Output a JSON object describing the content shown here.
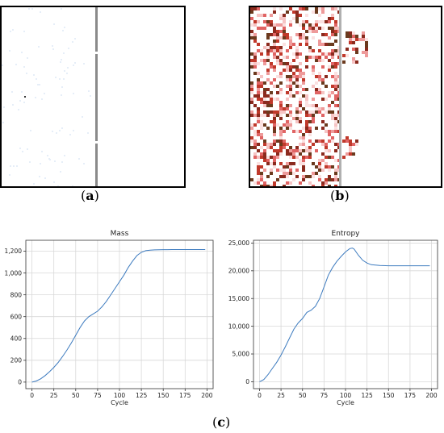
{
  "labels": {
    "a": "a",
    "b": "b",
    "c": "c"
  },
  "chart_data": [
    {
      "type": "line",
      "title": "Mass",
      "xlabel": "Cycle",
      "ylabel": "",
      "xlim": [
        -7,
        207
      ],
      "ylim": [
        -60,
        1300
      ],
      "xticks": [
        0,
        25,
        50,
        75,
        100,
        125,
        150,
        175,
        200
      ],
      "yticks": [
        0,
        200,
        400,
        600,
        800,
        1000,
        1200
      ],
      "ytick_labels": [
        "0",
        "200",
        "400",
        "600",
        "800",
        "1,000",
        "1,200"
      ],
      "grid": true,
      "color": "#3d7bbf",
      "series": [
        {
          "x": [
            0,
            5,
            10,
            15,
            20,
            25,
            30,
            35,
            40,
            45,
            50,
            55,
            60,
            65,
            70,
            75,
            80,
            85,
            90,
            95,
            100,
            105,
            110,
            115,
            120,
            125,
            130,
            135,
            140,
            145,
            150,
            155,
            160,
            170,
            180,
            190,
            198
          ],
          "y": [
            0,
            10,
            30,
            60,
            95,
            135,
            180,
            235,
            295,
            360,
            430,
            500,
            560,
            600,
            625,
            650,
            690,
            740,
            800,
            860,
            920,
            980,
            1050,
            1110,
            1160,
            1190,
            1205,
            1210,
            1212,
            1213,
            1214,
            1214,
            1215,
            1215,
            1215,
            1215,
            1215
          ]
        }
      ]
    },
    {
      "type": "line",
      "title": "Entropy",
      "xlabel": "Cycle",
      "ylabel": "",
      "xlim": [
        -7,
        207
      ],
      "ylim": [
        -1250,
        25500
      ],
      "xticks": [
        0,
        25,
        50,
        75,
        100,
        125,
        150,
        175,
        200
      ],
      "yticks": [
        0,
        5000,
        10000,
        15000,
        20000,
        25000
      ],
      "ytick_labels": [
        "0",
        "5,000",
        "10,000",
        "15,000",
        "20,000",
        "25,000"
      ],
      "grid": true,
      "color": "#3d7bbf",
      "series": [
        {
          "x": [
            0,
            5,
            10,
            15,
            20,
            25,
            30,
            35,
            40,
            45,
            50,
            55,
            60,
            65,
            70,
            75,
            80,
            85,
            90,
            95,
            100,
            105,
            108,
            110,
            115,
            120,
            125,
            130,
            140,
            150,
            160,
            170,
            180,
            190,
            198
          ],
          "y": [
            0,
            400,
            1300,
            2400,
            3500,
            4800,
            6300,
            7900,
            9500,
            10600,
            11400,
            12500,
            12900,
            13600,
            15000,
            17100,
            19200,
            20600,
            21700,
            22600,
            23400,
            24000,
            24100,
            23900,
            22800,
            21900,
            21400,
            21100,
            20950,
            20900,
            20900,
            20900,
            20900,
            20900,
            20900
          ]
        }
      ]
    }
  ]
}
